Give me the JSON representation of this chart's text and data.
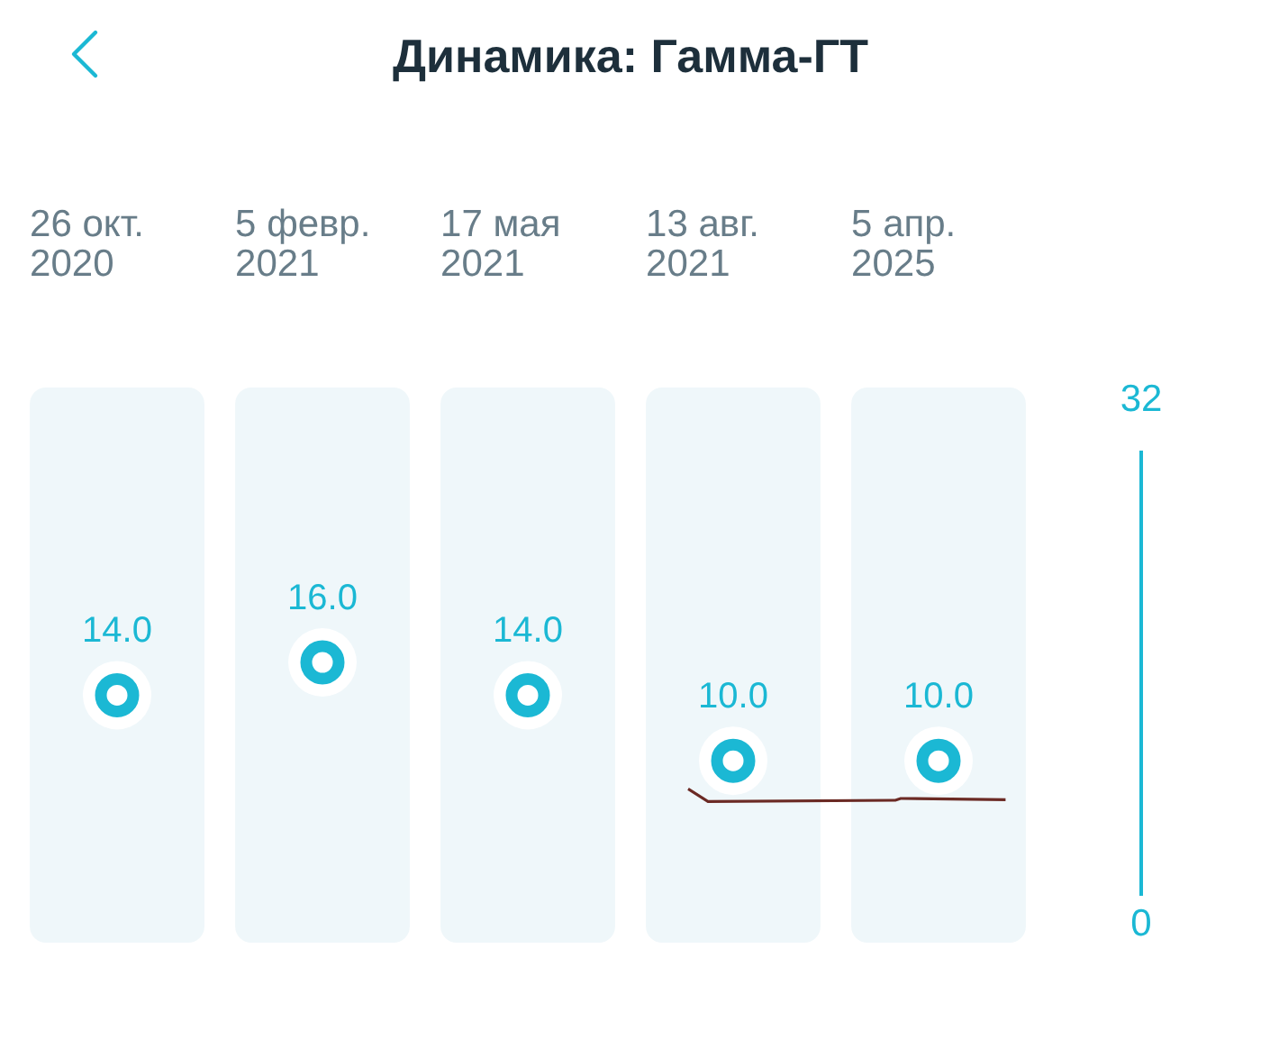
{
  "chart_data": {
    "type": "scatter",
    "title": "Динамика: Гамма-ГТ",
    "categories": [
      "26 окт. 2020",
      "5 февр. 2021",
      "17 мая 2021",
      "13 авг. 2021",
      "5 апр. 2025"
    ],
    "values": [
      14,
      16,
      14,
      10,
      10
    ],
    "value_labels": [
      "14.0",
      "16.0",
      "14.0",
      "10.0",
      "10.0"
    ],
    "color": "#1bb8d4",
    "ylim": [
      0,
      32
    ],
    "yticks": [
      0,
      32
    ],
    "marker": "circle",
    "bands": [
      {
        "axis": "x",
        "from": "26 окт. 2020",
        "to": "26 окт. 2020",
        "color": "#eff7fa"
      },
      {
        "axis": "x",
        "from": "5 февр. 2021",
        "to": "5 февр. 2021",
        "color": "#eff7fa"
      },
      {
        "axis": "x",
        "from": "17 мая 2021",
        "to": "17 мая 2021",
        "color": "#eff7fa"
      },
      {
        "axis": "x",
        "from": "13 авг. 2021",
        "to": "13 авг. 2021",
        "color": "#eff7fa"
      },
      {
        "axis": "x",
        "from": "5 апр. 2025",
        "to": "5 апр. 2025",
        "color": "#eff7fa"
      }
    ]
  }
}
